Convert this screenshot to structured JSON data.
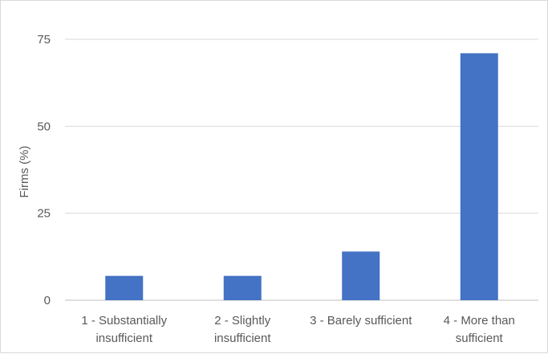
{
  "chart_data": {
    "type": "bar",
    "title": "",
    "xlabel": "",
    "ylabel": "Firms (%)",
    "ylim": [
      0,
      75
    ],
    "yticks": [
      "0",
      "25",
      "50",
      "75"
    ],
    "grid": true,
    "categories": [
      [
        "1 - Substantially",
        "insufficient"
      ],
      [
        "2 - Slightly",
        "insufficient"
      ],
      [
        "3 - Barely sufficient"
      ],
      [
        "4 - More than",
        "sufficient"
      ]
    ],
    "values": [
      7,
      7,
      14,
      71
    ],
    "colors": {
      "bar": "#4472C4",
      "grid": "#d9d9d9",
      "axis": "#bfbfbf",
      "text": "#595959"
    }
  }
}
